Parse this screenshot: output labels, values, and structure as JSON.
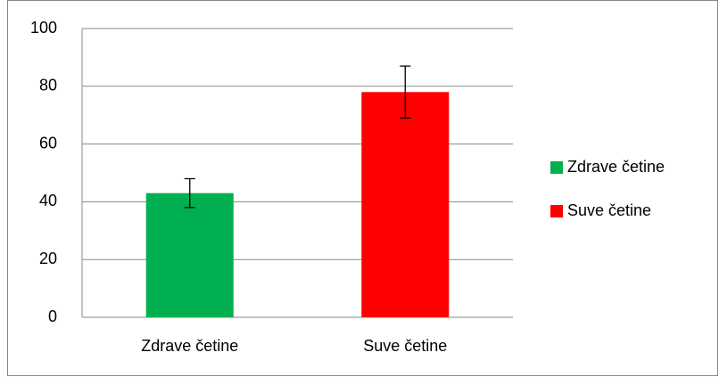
{
  "chart_data": {
    "type": "bar",
    "categories": [
      "Zdrave četine",
      "Suve četine"
    ],
    "series": [
      {
        "name": "Zdrave četine",
        "color": "#00b050",
        "values": [
          43,
          null
        ],
        "errors": [
          5,
          null
        ]
      },
      {
        "name": "Suve četine",
        "color": "#ff0000",
        "values": [
          null,
          78
        ],
        "errors": [
          null,
          9
        ]
      }
    ],
    "ylim": [
      0,
      100
    ],
    "yticks": [
      0,
      20,
      40,
      60,
      80,
      100
    ],
    "grid": true,
    "legend": "right"
  }
}
